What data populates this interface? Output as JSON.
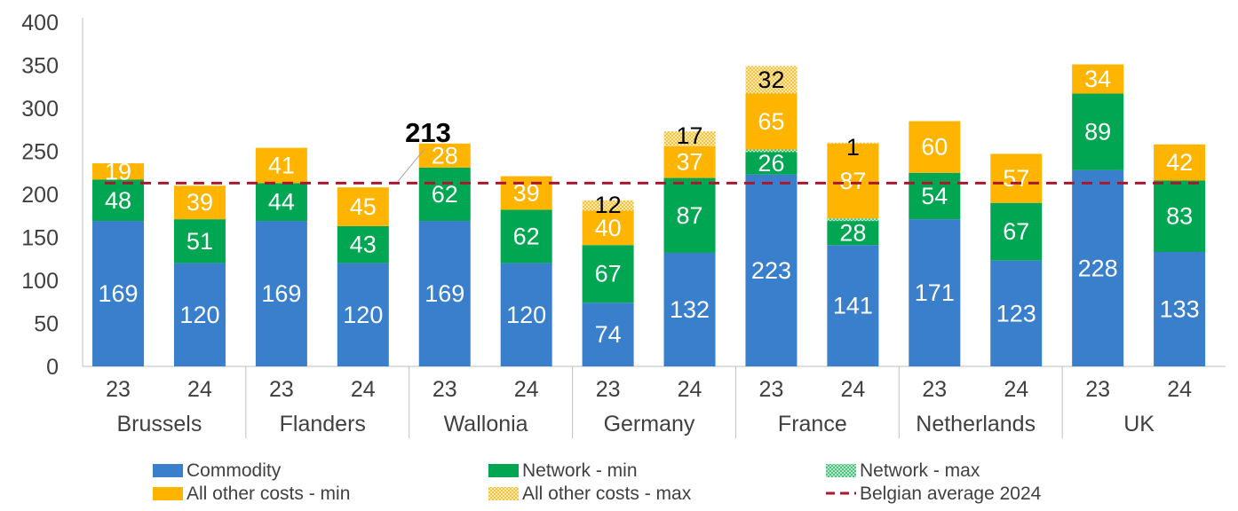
{
  "chart_data": {
    "type": "bar",
    "stacked": true,
    "ylim": [
      0,
      400
    ],
    "yticks": [
      "0",
      "50",
      "100",
      "150",
      "200",
      "250",
      "300",
      "350",
      "400"
    ],
    "groups": [
      {
        "label": "Brussels",
        "bars": [
          {
            "year": "23",
            "commodity": 169,
            "network_min": 48,
            "network_max": 0,
            "other_min": 19,
            "other_max": 0
          },
          {
            "year": "24",
            "commodity": 120,
            "network_min": 51,
            "network_max": 0,
            "other_min": 39,
            "other_max": 0
          }
        ]
      },
      {
        "label": "Flanders",
        "bars": [
          {
            "year": "23",
            "commodity": 169,
            "network_min": 44,
            "network_max": 0,
            "other_min": 41,
            "other_max": 0
          },
          {
            "year": "24",
            "commodity": 120,
            "network_min": 43,
            "network_max": 0,
            "other_min": 45,
            "other_max": 0
          }
        ]
      },
      {
        "label": "Wallonia",
        "bars": [
          {
            "year": "23",
            "commodity": 169,
            "network_min": 62,
            "network_max": 0,
            "other_min": 28,
            "other_max": 0
          },
          {
            "year": "24",
            "commodity": 120,
            "network_min": 62,
            "network_max": 0,
            "other_min": 39,
            "other_max": 0
          }
        ]
      },
      {
        "label": "Germany",
        "bars": [
          {
            "year": "23",
            "commodity": 74,
            "network_min": 67,
            "network_max": 0,
            "other_min": 40,
            "other_max": 12
          },
          {
            "year": "24",
            "commodity": 132,
            "network_min": 87,
            "network_max": 0,
            "other_min": 37,
            "other_max": 17
          }
        ]
      },
      {
        "label": "France",
        "bars": [
          {
            "year": "23",
            "commodity": 223,
            "network_min": 26,
            "network_max": 3,
            "other_min": 65,
            "other_max": 32
          },
          {
            "year": "24",
            "commodity": 141,
            "network_min": 28,
            "network_max": 3,
            "other_min": 87,
            "other_max": 1
          }
        ]
      },
      {
        "label": "Netherlands",
        "bars": [
          {
            "year": "23",
            "commodity": 171,
            "network_min": 54,
            "network_max": 0,
            "other_min": 60,
            "other_max": 0
          },
          {
            "year": "24",
            "commodity": 123,
            "network_min": 67,
            "network_max": 0,
            "other_min": 57,
            "other_max": 0
          }
        ]
      },
      {
        "label": "UK",
        "bars": [
          {
            "year": "23",
            "commodity": 228,
            "network_min": 89,
            "network_max": 0,
            "other_min": 34,
            "other_max": 0
          },
          {
            "year": "24",
            "commodity": 133,
            "network_min": 83,
            "network_max": 0,
            "other_min": 42,
            "other_max": 0
          }
        ]
      }
    ],
    "series": [
      {
        "key": "commodity",
        "name": "Commodity",
        "color": "#3A7FCB"
      },
      {
        "key": "network_min",
        "name": "Network - min",
        "color": "#00A651"
      },
      {
        "key": "network_max",
        "name": "Network - max",
        "color": "#00A651",
        "pattern": "dotted"
      },
      {
        "key": "other_min",
        "name": "All other costs - min",
        "color": "#FFB400"
      },
      {
        "key": "other_max",
        "name": "All other costs - max",
        "color": "#FFB400",
        "pattern": "dotted"
      }
    ],
    "reference_line": {
      "name": "Belgian average 2024",
      "value": 213,
      "label": "213",
      "color": "#A6192E",
      "style": "dashed"
    },
    "legend_position": "bottom"
  }
}
